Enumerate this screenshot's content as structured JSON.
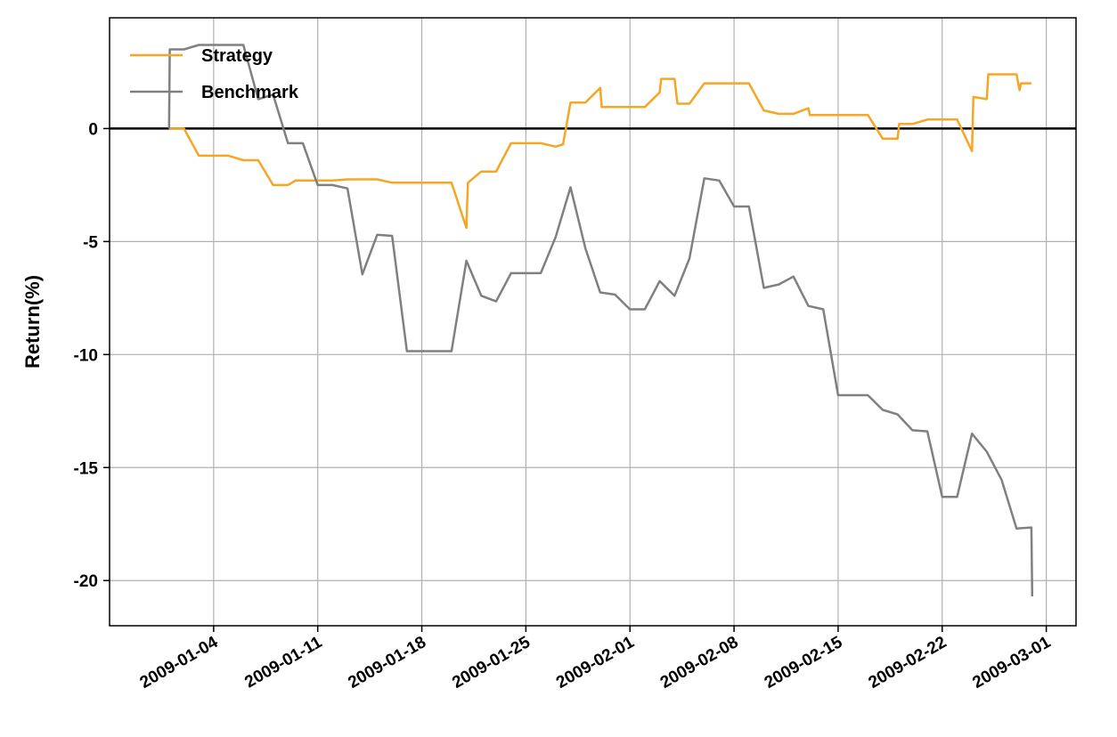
{
  "chart_data": {
    "type": "line",
    "title": "",
    "xlabel": "",
    "ylabel": "Return(%)",
    "grid": true,
    "legend_position": "top-left",
    "x_axis": {
      "type": "date",
      "range": [
        "2008-12-28",
        "2009-03-03"
      ],
      "ticks": [
        "2009-01-04",
        "2009-01-11",
        "2009-01-18",
        "2009-01-25",
        "2009-02-01",
        "2009-02-08",
        "2009-02-15",
        "2009-02-22",
        "2009-03-01"
      ],
      "tick_labels": [
        "2009-01-04",
        "2009-01-11",
        "2009-01-18",
        "2009-01-25",
        "2009-02-01",
        "2009-02-08",
        "2009-02-15",
        "2009-02-22",
        "2009-03-01"
      ]
    },
    "y_axis": {
      "range": [
        -22,
        4.9
      ],
      "ticks": [
        0,
        -5,
        -10,
        -15,
        -20
      ],
      "tick_labels": [
        "0",
        "-5",
        "-10",
        "-15",
        "-20"
      ]
    },
    "reference_line": {
      "y": 0,
      "color": "#000000"
    },
    "series": [
      {
        "name": "Strategy",
        "color": "#f5a623",
        "points": [
          [
            "2009-01-01",
            0
          ],
          [
            "2009-01-02",
            0
          ],
          [
            "2009-01-03",
            -1.2
          ],
          [
            "2009-01-04",
            -1.2
          ],
          [
            "2009-01-05",
            -1.2
          ],
          [
            "2009-01-06",
            -1.4
          ],
          [
            "2009-01-07",
            -1.4
          ],
          [
            "2009-01-08",
            -2.5
          ],
          [
            "2009-01-09",
            -2.5
          ],
          [
            "2009-01-09.5",
            -2.3
          ],
          [
            "2009-01-10",
            -2.3
          ],
          [
            "2009-01-11",
            -2.3
          ],
          [
            "2009-01-12",
            -2.3
          ],
          [
            "2009-01-13",
            -2.25
          ],
          [
            "2009-01-14",
            -2.25
          ],
          [
            "2009-01-15",
            -2.25
          ],
          [
            "2009-01-16",
            -2.4
          ],
          [
            "2009-01-17",
            -2.4
          ],
          [
            "2009-01-18",
            -2.4
          ],
          [
            "2009-01-19",
            -2.4
          ],
          [
            "2009-01-20",
            -2.4
          ],
          [
            "2009-01-21",
            -4.4
          ],
          [
            "2009-01-21.1",
            -2.4
          ],
          [
            "2009-01-22",
            -1.9
          ],
          [
            "2009-01-23",
            -1.9
          ],
          [
            "2009-01-24",
            -0.65
          ],
          [
            "2009-01-25",
            -0.65
          ],
          [
            "2009-01-26",
            -0.65
          ],
          [
            "2009-01-27",
            -0.8
          ],
          [
            "2009-01-27.5",
            -0.7
          ],
          [
            "2009-01-28",
            1.15
          ],
          [
            "2009-01-29",
            1.15
          ],
          [
            "2009-01-30",
            1.8
          ],
          [
            "2009-01-30.1",
            0.95
          ],
          [
            "2009-01-31",
            0.95
          ],
          [
            "2009-02-01",
            0.95
          ],
          [
            "2009-02-02",
            0.95
          ],
          [
            "2009-02-03",
            1.6
          ],
          [
            "2009-02-03.1",
            2.2
          ],
          [
            "2009-02-04",
            2.2
          ],
          [
            "2009-02-04.2",
            1.1
          ],
          [
            "2009-02-05",
            1.1
          ],
          [
            "2009-02-06",
            2.0
          ],
          [
            "2009-02-07",
            2.0
          ],
          [
            "2009-02-08",
            2.0
          ],
          [
            "2009-02-09",
            2.0
          ],
          [
            "2009-02-10",
            0.8
          ],
          [
            "2009-02-11",
            0.65
          ],
          [
            "2009-02-12",
            0.65
          ],
          [
            "2009-02-13",
            0.9
          ],
          [
            "2009-02-13.1",
            0.6
          ],
          [
            "2009-02-14",
            0.6
          ],
          [
            "2009-02-15",
            0.6
          ],
          [
            "2009-02-16",
            0.6
          ],
          [
            "2009-02-17",
            0.6
          ],
          [
            "2009-02-18",
            -0.45
          ],
          [
            "2009-02-19",
            -0.45
          ],
          [
            "2009-02-19.1",
            0.2
          ],
          [
            "2009-02-20",
            0.2
          ],
          [
            "2009-02-21",
            0.4
          ],
          [
            "2009-02-22",
            0.4
          ],
          [
            "2009-02-23",
            0.4
          ],
          [
            "2009-02-24",
            -1.0
          ],
          [
            "2009-02-24.1",
            1.4
          ],
          [
            "2009-02-25",
            1.3
          ],
          [
            "2009-02-25.1",
            2.4
          ],
          [
            "2009-02-26",
            2.4
          ],
          [
            "2009-02-27",
            2.4
          ],
          [
            "2009-02-27.2",
            1.7
          ],
          [
            "2009-02-27.3",
            2.0
          ],
          [
            "2009-02-28",
            2.0
          ]
        ]
      },
      {
        "name": "Benchmark",
        "color": "#808080",
        "points": [
          [
            "2009-01-01",
            0
          ],
          [
            "2009-01-01.05",
            3.5
          ],
          [
            "2009-01-02",
            3.5
          ],
          [
            "2009-01-03",
            3.7
          ],
          [
            "2009-01-04",
            3.7
          ],
          [
            "2009-01-05",
            3.7
          ],
          [
            "2009-01-06",
            3.7
          ],
          [
            "2009-01-07",
            1.3
          ],
          [
            "2009-01-08",
            1.5
          ],
          [
            "2009-01-09",
            -0.65
          ],
          [
            "2009-01-10",
            -0.65
          ],
          [
            "2009-01-11",
            -2.5
          ],
          [
            "2009-01-12",
            -2.5
          ],
          [
            "2009-01-13",
            -2.65
          ],
          [
            "2009-01-14",
            -6.45
          ],
          [
            "2009-01-15",
            -4.7
          ],
          [
            "2009-01-16",
            -4.75
          ],
          [
            "2009-01-17",
            -9.85
          ],
          [
            "2009-01-18",
            -9.85
          ],
          [
            "2009-01-19",
            -9.85
          ],
          [
            "2009-01-20",
            -9.85
          ],
          [
            "2009-01-21",
            -5.85
          ],
          [
            "2009-01-22",
            -7.4
          ],
          [
            "2009-01-23",
            -7.65
          ],
          [
            "2009-01-24",
            -6.4
          ],
          [
            "2009-01-25",
            -6.4
          ],
          [
            "2009-01-26",
            -6.4
          ],
          [
            "2009-01-27",
            -4.8
          ],
          [
            "2009-01-28",
            -2.6
          ],
          [
            "2009-01-29",
            -5.3
          ],
          [
            "2009-01-30",
            -7.25
          ],
          [
            "2009-01-31",
            -7.35
          ],
          [
            "2009-02-01",
            -8.0
          ],
          [
            "2009-02-02",
            -8.0
          ],
          [
            "2009-02-03",
            -6.75
          ],
          [
            "2009-02-04",
            -7.4
          ],
          [
            "2009-02-05",
            -5.75
          ],
          [
            "2009-02-06",
            -2.2
          ],
          [
            "2009-02-07",
            -2.3
          ],
          [
            "2009-02-08",
            -3.45
          ],
          [
            "2009-02-09",
            -3.45
          ],
          [
            "2009-02-10",
            -7.05
          ],
          [
            "2009-02-11",
            -6.9
          ],
          [
            "2009-02-12",
            -6.55
          ],
          [
            "2009-02-13",
            -7.85
          ],
          [
            "2009-02-14",
            -8.0
          ],
          [
            "2009-02-15",
            -11.8
          ],
          [
            "2009-02-16",
            -11.8
          ],
          [
            "2009-02-17",
            -11.8
          ],
          [
            "2009-02-18",
            -12.45
          ],
          [
            "2009-02-19",
            -12.65
          ],
          [
            "2009-02-20",
            -13.35
          ],
          [
            "2009-02-21",
            -13.4
          ],
          [
            "2009-02-22",
            -16.3
          ],
          [
            "2009-02-23",
            -16.3
          ],
          [
            "2009-02-24",
            -13.5
          ],
          [
            "2009-02-25",
            -14.3
          ],
          [
            "2009-02-26",
            -15.55
          ],
          [
            "2009-02-27",
            -17.7
          ],
          [
            "2009-02-28",
            -17.65
          ],
          [
            "2009-02-28.05",
            -20.7
          ]
        ]
      }
    ]
  }
}
